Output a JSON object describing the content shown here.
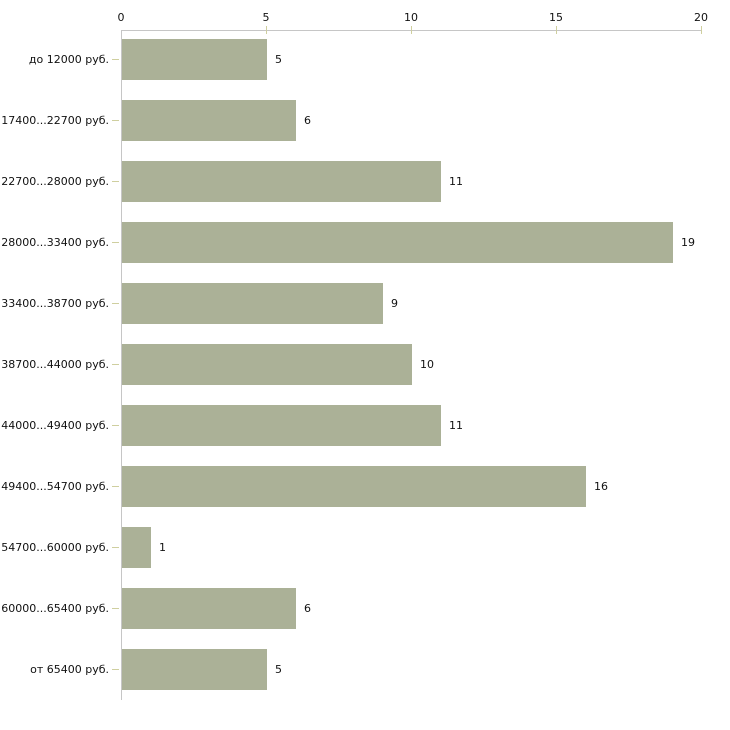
{
  "chart_data": {
    "type": "bar",
    "orientation": "horizontal",
    "title": "",
    "xlabel": "",
    "ylabel": "",
    "categories": [
      "до 12000 руб.",
      "17400...22700 руб.",
      "22700...28000 руб.",
      "28000...33400 руб.",
      "33400...38700 руб.",
      "38700...44000 руб.",
      "44000...49400 руб.",
      "49400...54700 руб.",
      "54700...60000 руб.",
      "60000...65400 руб.",
      "от 65400 руб."
    ],
    "values": [
      5,
      6,
      11,
      19,
      9,
      10,
      11,
      16,
      1,
      6,
      5
    ],
    "xticks": [
      "0",
      "5",
      "10",
      "15",
      "20"
    ],
    "xlim": [
      0,
      20
    ],
    "grid": false,
    "legend": false,
    "bar_color": "#abb197",
    "axis_color": "#c6c6c6",
    "tick_color": "#cfcf9f",
    "text_color": "#111111",
    "background_color": "#ffffff"
  }
}
